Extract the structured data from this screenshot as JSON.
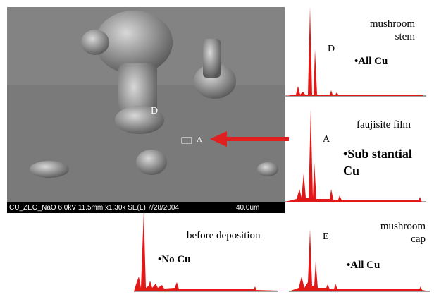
{
  "sem_image": {
    "caption": "CU_ZEO_NaO 6.0kV 11.5mm x1.30k SE(L) 7/28/2004",
    "scale": "40.0um",
    "labels": [
      "D",
      "A"
    ]
  },
  "spectra": [
    {
      "title_lines": [
        "mushroom",
        "stem"
      ],
      "label": "D",
      "note": "•All Cu"
    },
    {
      "title_lines": [
        "faujisite film"
      ],
      "label": "A",
      "note_lines": [
        "•Sub stantial",
        "Cu"
      ]
    },
    {
      "title_lines": [
        "before deposition"
      ],
      "note": "•No Cu"
    },
    {
      "title_lines": [
        "mushroom",
        "cap"
      ],
      "label": "E",
      "note": "•All Cu"
    }
  ]
}
